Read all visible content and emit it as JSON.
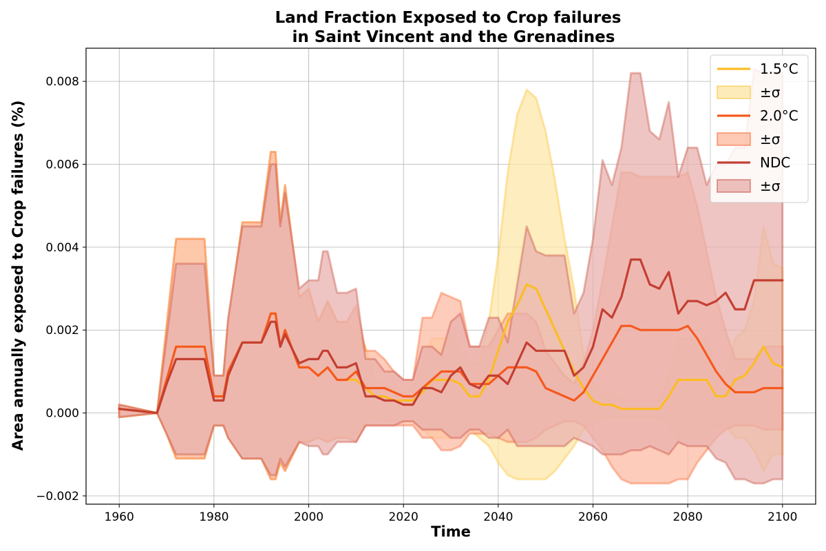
{
  "chart_data": {
    "type": "line",
    "title_line1": "Land Fraction Exposed to Crop failures",
    "title_line2": "in Saint Vincent and the Grenadines",
    "xlabel": "Time",
    "ylabel": "Area annually exposed to Crop failures (%)",
    "xlim": [
      1953,
      2107
    ],
    "ylim": [
      -0.0022,
      0.0088
    ],
    "xticks": [
      1960,
      1980,
      2000,
      2020,
      2040,
      2060,
      2080,
      2100
    ],
    "xtick_labels": [
      "1960",
      "1980",
      "2000",
      "2020",
      "2040",
      "2060",
      "2080",
      "2100"
    ],
    "yticks": [
      -0.002,
      0.0,
      0.002,
      0.004,
      0.006,
      0.008
    ],
    "ytick_labels": [
      "−0.002",
      "0.000",
      "0.002",
      "0.004",
      "0.006",
      "0.008"
    ],
    "grid": true,
    "legend_position": "top-right",
    "series": [
      {
        "name": "1.5°C",
        "band_label": "±σ",
        "color": "#FBBC24",
        "band_fill": "#FDE7A8",
        "x": [
          1960,
          1968,
          1970,
          1972,
          1978,
          1980,
          1982,
          1983,
          1986,
          1990,
          1992,
          1993,
          1994,
          1995,
          1998,
          2000,
          2002,
          2004,
          2006,
          2008,
          2010,
          2012,
          2014,
          2016,
          2018,
          2020,
          2022,
          2024,
          2026,
          2028,
          2030,
          2032,
          2034,
          2036,
          2038,
          2040,
          2042,
          2044,
          2046,
          2048,
          2050,
          2052,
          2054,
          2056,
          2058,
          2060,
          2062,
          2064,
          2066,
          2068,
          2070,
          2072,
          2074,
          2076,
          2078,
          2080,
          2082,
          2084,
          2086,
          2088,
          2090,
          2092,
          2094,
          2096,
          2098,
          2100
        ],
        "y": [
          0.0001,
          0.0,
          0.0008,
          0.0016,
          0.0016,
          0.0004,
          0.0004,
          0.001,
          0.0017,
          0.0017,
          0.0024,
          0.0024,
          0.0016,
          0.002,
          0.0011,
          0.0011,
          0.0009,
          0.0011,
          0.0008,
          0.0008,
          0.0008,
          0.0006,
          0.0004,
          0.0004,
          0.0003,
          0.0003,
          0.0003,
          0.0005,
          0.0008,
          0.0008,
          0.0008,
          0.0007,
          0.0004,
          0.0004,
          0.0008,
          0.0015,
          0.0022,
          0.0026,
          0.0031,
          0.003,
          0.0025,
          0.002,
          0.0015,
          0.001,
          0.0006,
          0.0003,
          0.0002,
          0.0002,
          0.0001,
          0.0001,
          0.0001,
          0.0001,
          0.0001,
          0.0004,
          0.0008,
          0.0008,
          0.0008,
          0.0008,
          0.0004,
          0.0004,
          0.0008,
          0.0009,
          0.0012,
          0.0016,
          0.0012,
          0.0011
        ],
        "upper": [
          0.0002,
          0.0,
          0.0021,
          0.0042,
          0.0042,
          0.0009,
          0.0009,
          0.0022,
          0.0046,
          0.0046,
          0.0063,
          0.0063,
          0.0046,
          0.0055,
          0.0028,
          0.003,
          0.0022,
          0.0027,
          0.0022,
          0.0022,
          0.002,
          0.0016,
          0.0008,
          0.0007,
          0.0006,
          0.0005,
          0.0006,
          0.0012,
          0.0018,
          0.0018,
          0.0018,
          0.0015,
          0.0012,
          0.0012,
          0.0022,
          0.0038,
          0.0058,
          0.0072,
          0.0078,
          0.0076,
          0.0068,
          0.0056,
          0.0042,
          0.003,
          0.0014,
          0.0007,
          0.0005,
          0.0005,
          0.0003,
          0.0003,
          0.0003,
          0.0003,
          0.0003,
          0.0009,
          0.0018,
          0.0018,
          0.0018,
          0.0018,
          0.0009,
          0.0009,
          0.0018,
          0.002,
          0.0027,
          0.0045,
          0.0036,
          0.0035
        ],
        "lower": [
          -0.0001,
          0.0,
          -0.0005,
          -0.0011,
          -0.0011,
          -0.0003,
          -0.0003,
          -0.0006,
          -0.0011,
          -0.0011,
          -0.0016,
          -0.0016,
          -0.0012,
          -0.0014,
          -0.0007,
          -0.0007,
          -0.0006,
          -0.0007,
          -0.0006,
          -0.0006,
          -0.0005,
          -0.0003,
          -0.0001,
          -0.0002,
          -0.0002,
          -0.0002,
          -0.0002,
          -0.0004,
          -0.0006,
          -0.0006,
          -0.0006,
          -0.0005,
          -0.0004,
          -0.0006,
          -0.0008,
          -0.0012,
          -0.0015,
          -0.0016,
          -0.0016,
          -0.0016,
          -0.0016,
          -0.0014,
          -0.0011,
          -0.0008,
          -0.0004,
          -0.0002,
          -0.0001,
          -0.0001,
          -0.0001,
          -0.0001,
          -0.0001,
          -0.0001,
          -0.0001,
          -0.0003,
          -0.0006,
          -0.0006,
          -0.0006,
          -0.0006,
          -0.0003,
          -0.0003,
          -0.0006,
          -0.0006,
          -0.0009,
          -0.0014,
          -0.001,
          -0.001
        ]
      },
      {
        "name": "2.0°C",
        "band_label": "±σ",
        "color": "#F5591E",
        "band_fill": "#FDBBA3",
        "x": [
          1960,
          1968,
          1970,
          1972,
          1978,
          1980,
          1982,
          1983,
          1986,
          1990,
          1992,
          1993,
          1994,
          1995,
          1998,
          2000,
          2002,
          2004,
          2006,
          2008,
          2010,
          2012,
          2014,
          2016,
          2018,
          2020,
          2022,
          2024,
          2026,
          2028,
          2030,
          2032,
          2034,
          2036,
          2038,
          2040,
          2042,
          2044,
          2046,
          2048,
          2050,
          2052,
          2054,
          2056,
          2058,
          2060,
          2062,
          2064,
          2066,
          2068,
          2070,
          2072,
          2074,
          2076,
          2078,
          2080,
          2082,
          2084,
          2086,
          2088,
          2090,
          2092,
          2094,
          2096,
          2098,
          2100
        ],
        "y": [
          0.0001,
          0.0,
          0.0008,
          0.0016,
          0.0016,
          0.0004,
          0.0004,
          0.001,
          0.0017,
          0.0017,
          0.0024,
          0.0024,
          0.0016,
          0.002,
          0.0011,
          0.0011,
          0.0009,
          0.0011,
          0.0008,
          0.0008,
          0.001,
          0.0006,
          0.0006,
          0.0006,
          0.0005,
          0.0004,
          0.0004,
          0.0006,
          0.0008,
          0.001,
          0.001,
          0.001,
          0.0007,
          0.0007,
          0.0007,
          0.0009,
          0.0011,
          0.0011,
          0.0011,
          0.001,
          0.0006,
          0.0005,
          0.0004,
          0.0003,
          0.0005,
          0.0009,
          0.0013,
          0.0017,
          0.0021,
          0.0021,
          0.002,
          0.002,
          0.002,
          0.002,
          0.002,
          0.0021,
          0.0018,
          0.0014,
          0.001,
          0.0007,
          0.0005,
          0.0005,
          0.0005,
          0.0006,
          0.0006,
          0.0006
        ],
        "upper": [
          0.0002,
          0.0,
          0.0021,
          0.0042,
          0.0042,
          0.0009,
          0.0009,
          0.0022,
          0.0046,
          0.0046,
          0.0063,
          0.0063,
          0.0046,
          0.0055,
          0.0028,
          0.003,
          0.0022,
          0.0027,
          0.0022,
          0.0022,
          0.0026,
          0.0015,
          0.0015,
          0.0013,
          0.001,
          0.0008,
          0.0008,
          0.0023,
          0.0023,
          0.0029,
          0.0028,
          0.0027,
          0.0016,
          0.0016,
          0.0016,
          0.002,
          0.0024,
          0.0024,
          0.0024,
          0.0022,
          0.0015,
          0.0012,
          0.0009,
          0.0007,
          0.0012,
          0.002,
          0.0032,
          0.0045,
          0.0058,
          0.0058,
          0.0057,
          0.0057,
          0.0057,
          0.0057,
          0.0057,
          0.0058,
          0.005,
          0.0039,
          0.0028,
          0.002,
          0.0013,
          0.0013,
          0.0013,
          0.0016,
          0.0016,
          0.0016
        ],
        "lower": [
          -0.0001,
          0.0,
          -0.0005,
          -0.0011,
          -0.0011,
          -0.0003,
          -0.0003,
          -0.0006,
          -0.0011,
          -0.0011,
          -0.0016,
          -0.0016,
          -0.0012,
          -0.0014,
          -0.0007,
          -0.0007,
          -0.0006,
          -0.0007,
          -0.0006,
          -0.0006,
          -0.0007,
          -0.0003,
          -0.0003,
          -0.0003,
          -0.0003,
          -0.0003,
          -0.0003,
          -0.0006,
          -0.0006,
          -0.0009,
          -0.0009,
          -0.0008,
          -0.0005,
          -0.0005,
          -0.0005,
          -0.0006,
          -0.0007,
          -0.0007,
          -0.0007,
          -0.0006,
          -0.0004,
          -0.0003,
          -0.0002,
          -0.0002,
          -0.0003,
          -0.0006,
          -0.0009,
          -0.0013,
          -0.0016,
          -0.0017,
          -0.0017,
          -0.0017,
          -0.0017,
          -0.0017,
          -0.0016,
          -0.0016,
          -0.0012,
          -0.0009,
          -0.0006,
          -0.0004,
          -0.0003,
          -0.0003,
          -0.0003,
          -0.0004,
          -0.0004,
          -0.0004
        ]
      },
      {
        "name": "NDC",
        "band_label": "±σ",
        "color": "#C43F32",
        "band_fill": "#E8B2AE",
        "x": [
          1960,
          1968,
          1970,
          1972,
          1978,
          1980,
          1982,
          1983,
          1986,
          1990,
          1992,
          1993,
          1994,
          1995,
          1998,
          2000,
          2002,
          2003,
          2004,
          2006,
          2008,
          2010,
          2012,
          2014,
          2016,
          2018,
          2020,
          2022,
          2024,
          2026,
          2028,
          2030,
          2032,
          2034,
          2036,
          2038,
          2040,
          2042,
          2044,
          2046,
          2048,
          2050,
          2052,
          2054,
          2056,
          2058,
          2060,
          2062,
          2064,
          2066,
          2068,
          2070,
          2072,
          2074,
          2076,
          2078,
          2080,
          2082,
          2084,
          2086,
          2088,
          2090,
          2092,
          2094,
          2096,
          2098,
          2100
        ],
        "y": [
          0.0001,
          0.0,
          0.0007,
          0.0013,
          0.0013,
          0.0003,
          0.0003,
          0.0009,
          0.0017,
          0.0017,
          0.0022,
          0.0022,
          0.0016,
          0.0019,
          0.0012,
          0.0013,
          0.0013,
          0.0015,
          0.0015,
          0.0011,
          0.0011,
          0.0012,
          0.0004,
          0.0004,
          0.0003,
          0.0003,
          0.0002,
          0.0002,
          0.0006,
          0.0006,
          0.0005,
          0.0009,
          0.0011,
          0.0007,
          0.0006,
          0.0009,
          0.0009,
          0.0007,
          0.0012,
          0.0017,
          0.0015,
          0.0015,
          0.0015,
          0.0015,
          0.0009,
          0.0011,
          0.0016,
          0.0025,
          0.0023,
          0.0028,
          0.0037,
          0.0037,
          0.0031,
          0.003,
          0.0034,
          0.0024,
          0.0027,
          0.0027,
          0.0026,
          0.0027,
          0.0029,
          0.0025,
          0.0025,
          0.0032,
          0.0032,
          0.0032,
          0.0032
        ],
        "upper": [
          0.0002,
          0.0,
          0.0018,
          0.0036,
          0.0036,
          0.0009,
          0.0009,
          0.0023,
          0.0045,
          0.0045,
          0.006,
          0.006,
          0.0045,
          0.0053,
          0.003,
          0.0032,
          0.0032,
          0.0039,
          0.0039,
          0.0029,
          0.0029,
          0.003,
          0.0013,
          0.0013,
          0.001,
          0.001,
          0.0008,
          0.0008,
          0.0016,
          0.0016,
          0.0014,
          0.0022,
          0.0024,
          0.0016,
          0.0016,
          0.0023,
          0.0023,
          0.0017,
          0.0031,
          0.0045,
          0.0039,
          0.0038,
          0.0038,
          0.0038,
          0.0024,
          0.0029,
          0.0042,
          0.0061,
          0.0055,
          0.0064,
          0.0082,
          0.0082,
          0.0068,
          0.0066,
          0.0075,
          0.0057,
          0.0064,
          0.0064,
          0.0055,
          0.006,
          0.006,
          0.0064,
          0.0064,
          0.0083,
          0.0082,
          0.0082,
          0.0082
        ],
        "lower": [
          -0.0001,
          0.0,
          -0.0005,
          -0.001,
          -0.001,
          -0.0003,
          -0.0003,
          -0.0006,
          -0.0011,
          -0.0011,
          -0.0015,
          -0.0015,
          -0.0011,
          -0.0013,
          -0.0007,
          -0.0008,
          -0.0008,
          -0.001,
          -0.001,
          -0.0007,
          -0.0007,
          -0.0007,
          -0.0003,
          -0.0003,
          -0.0003,
          -0.0003,
          -0.0002,
          -0.0002,
          -0.0004,
          -0.0004,
          -0.0004,
          -0.0006,
          -0.0006,
          -0.0004,
          -0.0004,
          -0.0006,
          -0.0006,
          -0.0004,
          -0.0008,
          -0.0008,
          -0.0008,
          -0.0008,
          -0.0008,
          -0.0008,
          -0.0006,
          -0.0007,
          -0.0008,
          -0.001,
          -0.001,
          -0.001,
          -0.0009,
          -0.0009,
          -0.0008,
          -0.0009,
          -0.001,
          -0.0007,
          -0.0008,
          -0.0008,
          -0.0008,
          -0.0011,
          -0.0012,
          -0.0016,
          -0.0016,
          -0.0017,
          -0.0017,
          -0.0016,
          -0.0016
        ]
      }
    ]
  }
}
